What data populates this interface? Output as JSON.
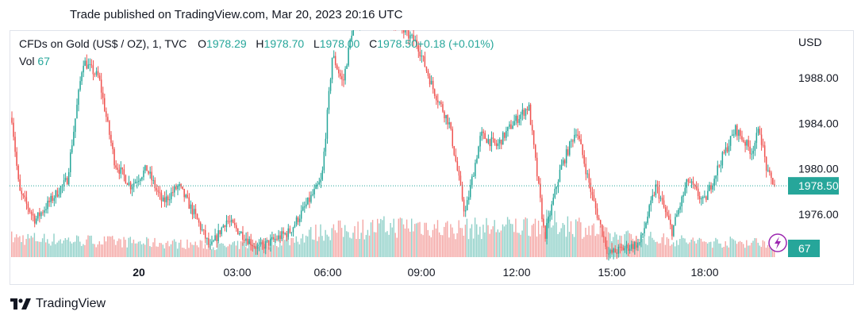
{
  "caption": "Trade published on TradingView.com, Mar 20, 2023 20:16 UTC",
  "legend": {
    "symbol": "CFDs on Gold (US$ / OZ), 1, TVC",
    "o_label": "O",
    "o_value": "1978.29",
    "h_label": "H",
    "h_value": "1978.70",
    "l_label": "L",
    "l_value": "1978.00",
    "c_label": "C",
    "c_value": "1978.50",
    "change": "+0.18 (+0.01%)",
    "vol_label": "Vol",
    "vol_value": "67"
  },
  "brand": "TradingView",
  "colors": {
    "up": "#26a69a",
    "down": "#ef5350",
    "up_vol": "#8fd0c8",
    "down_vol": "#f4a6a4"
  },
  "chart_data": {
    "type": "candlestick",
    "currency": "USD",
    "ylim": [
      1972.5,
      1993.5
    ],
    "y_ticks": [
      "1976.00",
      "1980.00",
      "1984.00",
      "1988.00"
    ],
    "x_ticks": [
      "20",
      "03:00",
      "06:00",
      "09:00",
      "12:00",
      "15:00",
      "18:00"
    ],
    "last_price": "1978.50",
    "last_volume": "67",
    "price_path": [
      [
        "20:16",
        1984.5
      ],
      [
        "20:30",
        1978.0
      ],
      [
        "21:00",
        1975.5
      ],
      [
        "22:00",
        1979.0
      ],
      [
        "22:30",
        1989.5
      ],
      [
        "23:00",
        1988.0
      ],
      [
        "23:30",
        1980.5
      ],
      [
        "20 00:00",
        1978.5
      ],
      [
        "00:30",
        1980.0
      ],
      [
        "01:00",
        1977.0
      ],
      [
        "01:30",
        1978.5
      ],
      [
        "02:00",
        1976.0
      ],
      [
        "02:30",
        1973.0
      ],
      [
        "03:00",
        1975.5
      ],
      [
        "04:00",
        1973.0
      ],
      [
        "05:00",
        1974.5
      ],
      [
        "06:00",
        1979.0
      ],
      [
        "06:20",
        1990.0
      ],
      [
        "06:40",
        1987.5
      ],
      [
        "07:00",
        1993.0
      ],
      [
        "08:00",
        1993.5
      ],
      [
        "09:00",
        1991.0
      ],
      [
        "09:30",
        1987.0
      ],
      [
        "10:00",
        1984.0
      ],
      [
        "10:30",
        1976.0
      ],
      [
        "11:00",
        1983.0
      ],
      [
        "11:30",
        1982.0
      ],
      [
        "12:00",
        1984.0
      ],
      [
        "12:30",
        1985.5
      ],
      [
        "13:00",
        1974.0
      ],
      [
        "13:30",
        1980.0
      ],
      [
        "14:00",
        1983.5
      ],
      [
        "14:30",
        1977.5
      ],
      [
        "15:00",
        1972.5
      ],
      [
        "16:00",
        1973.5
      ],
      [
        "16:30",
        1978.5
      ],
      [
        "17:00",
        1974.5
      ],
      [
        "17:30",
        1979.0
      ],
      [
        "18:00",
        1977.0
      ],
      [
        "18:30",
        1980.5
      ],
      [
        "19:00",
        1983.5
      ],
      [
        "19:30",
        1981.5
      ],
      [
        "19:45",
        1983.5
      ],
      [
        "20:00",
        1979.5
      ],
      [
        "20:16",
        1978.5
      ]
    ],
    "volume_profile": [
      [
        "20:16",
        45
      ],
      [
        "22:00",
        40
      ],
      [
        "00:00",
        35
      ],
      [
        "02:00",
        30
      ],
      [
        "03:00",
        25
      ],
      [
        "05:00",
        40
      ],
      [
        "06:00",
        60
      ],
      [
        "08:00",
        70
      ],
      [
        "09:00",
        75
      ],
      [
        "10:00",
        65
      ],
      [
        "12:00",
        70
      ],
      [
        "13:00",
        80
      ],
      [
        "14:00",
        75
      ],
      [
        "15:00",
        50
      ],
      [
        "16:00",
        45
      ],
      [
        "17:00",
        40
      ],
      [
        "18:00",
        35
      ],
      [
        "19:00",
        35
      ],
      [
        "20:16",
        35
      ]
    ]
  }
}
